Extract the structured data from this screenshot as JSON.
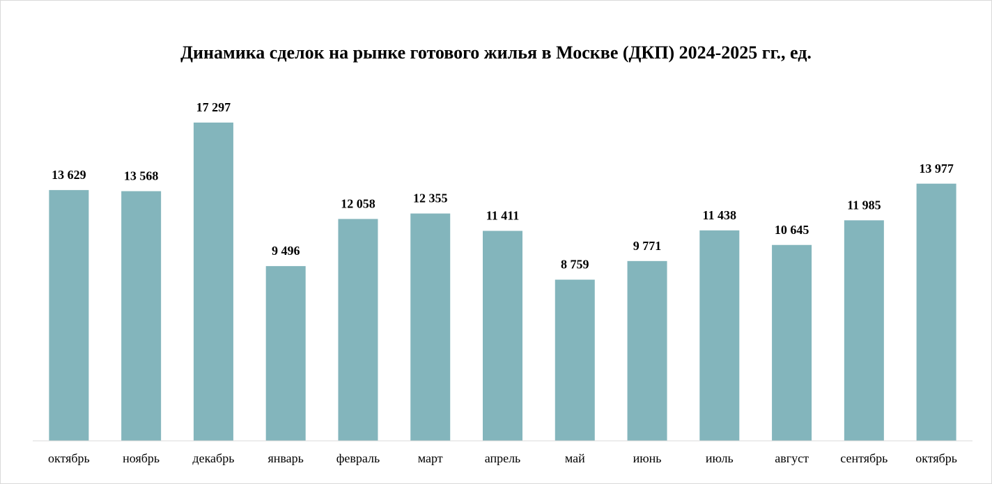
{
  "chart_data": {
    "type": "bar",
    "title": "Динамика сделок на рынке готового жилья в Москве (ДКП) 2024-2025 гг., ед.",
    "categories": [
      "октябрь",
      "ноябрь",
      "декабрь",
      "январь",
      "февраль",
      "март",
      "апрель",
      "май",
      "июнь",
      "июль",
      "август",
      "сентябрь",
      "октябрь"
    ],
    "values": [
      13629,
      13568,
      17297,
      9496,
      12058,
      12355,
      11411,
      8759,
      9771,
      11438,
      10645,
      11985,
      13977
    ],
    "value_labels": [
      "13 629",
      "13 568",
      "17 297",
      "9 496",
      "12 058",
      "12 355",
      "11 411",
      "8 759",
      "9 771",
      "11 438",
      "10 645",
      "11 985",
      "13 977"
    ],
    "color": "#83b5bc"
  }
}
